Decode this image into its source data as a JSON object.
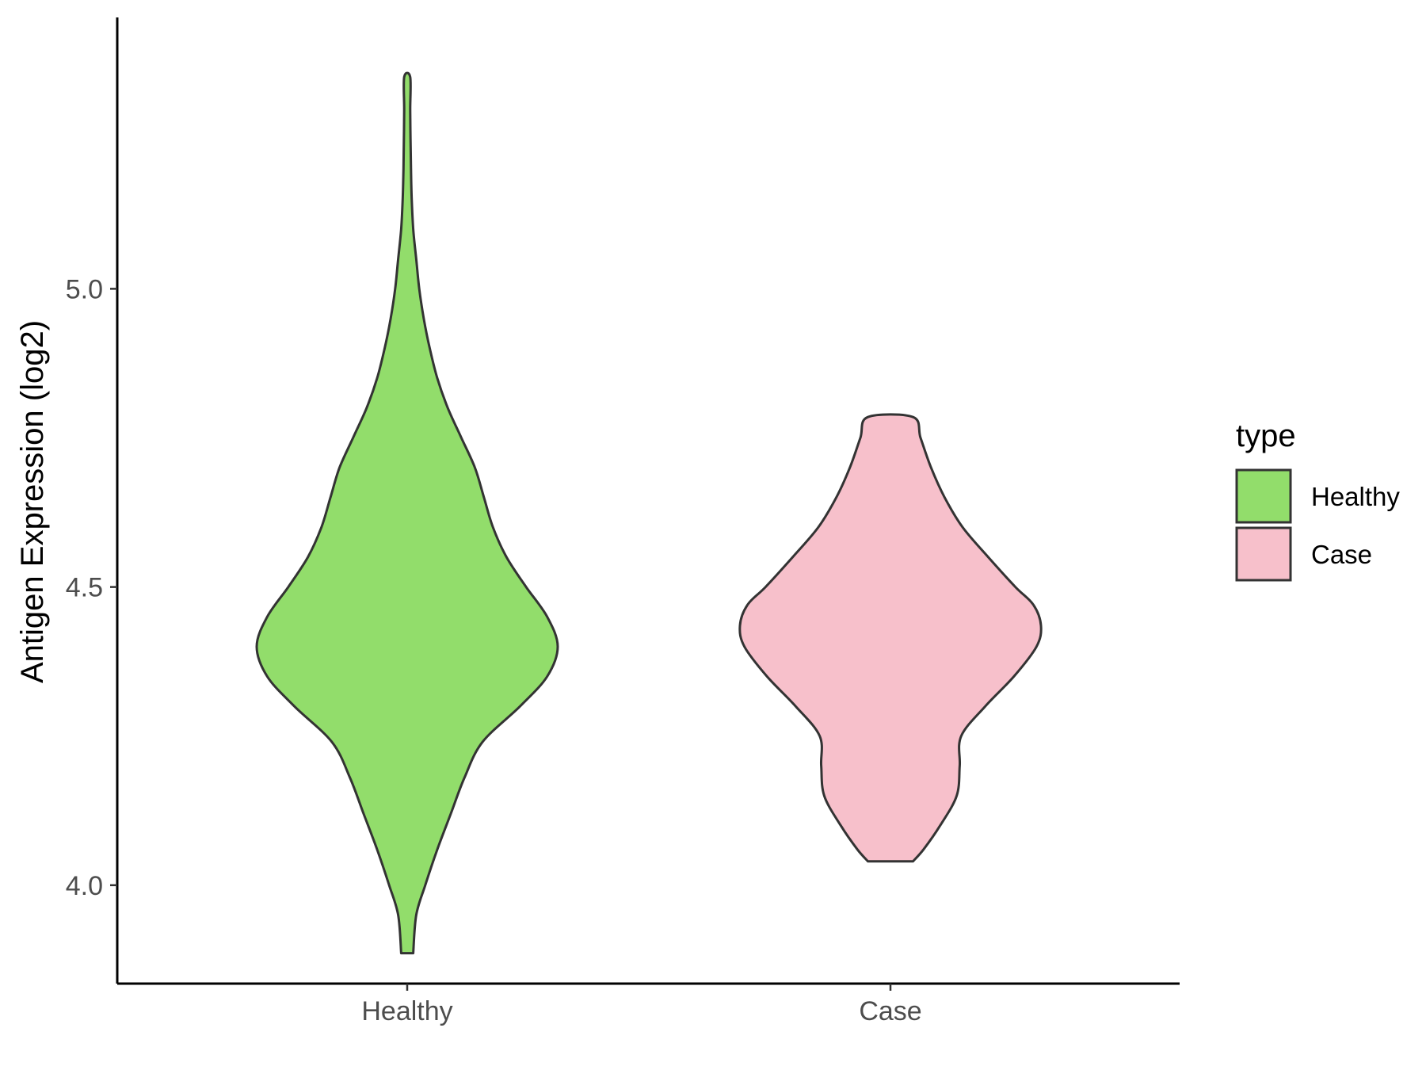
{
  "chart_data": {
    "type": "violin",
    "title": "",
    "xlabel": "",
    "ylabel": "Antigen Expression (log2)",
    "ylim": [
      3.835,
      5.455
    ],
    "yticks": [
      4.0,
      4.5,
      5.0
    ],
    "ytick_labels": [
      "4.0",
      "4.5",
      "5.0"
    ],
    "categories": [
      "Healthy",
      "Case"
    ],
    "legend": {
      "title": "type",
      "position": "right",
      "entries": [
        {
          "label": "Healthy",
          "color": "#92dd6b"
        },
        {
          "label": "Case",
          "color": "#f7c0cb"
        }
      ]
    },
    "grid": false,
    "series": [
      {
        "category": "Healthy",
        "color": "#92dd6b",
        "min": 3.886,
        "max": 5.355,
        "density_profile": [
          [
            3.886,
            0.04
          ],
          [
            3.95,
            0.06
          ],
          [
            4.0,
            0.12
          ],
          [
            4.06,
            0.2
          ],
          [
            4.12,
            0.29
          ],
          [
            4.18,
            0.38
          ],
          [
            4.24,
            0.5
          ],
          [
            4.3,
            0.75
          ],
          [
            4.35,
            0.93
          ],
          [
            4.4,
            1.0
          ],
          [
            4.45,
            0.93
          ],
          [
            4.5,
            0.79
          ],
          [
            4.55,
            0.66
          ],
          [
            4.6,
            0.57
          ],
          [
            4.65,
            0.51
          ],
          [
            4.7,
            0.45
          ],
          [
            4.75,
            0.36
          ],
          [
            4.8,
            0.27
          ],
          [
            4.85,
            0.2
          ],
          [
            4.9,
            0.15
          ],
          [
            4.95,
            0.11
          ],
          [
            5.0,
            0.08
          ],
          [
            5.05,
            0.06
          ],
          [
            5.1,
            0.04
          ],
          [
            5.15,
            0.03
          ],
          [
            5.2,
            0.025
          ],
          [
            5.25,
            0.022
          ],
          [
            5.3,
            0.02
          ],
          [
            5.355,
            0.02
          ]
        ]
      },
      {
        "category": "Case",
        "color": "#f7c0cb",
        "min": 4.04,
        "max": 4.785,
        "density_profile": [
          [
            4.04,
            0.15
          ],
          [
            4.06,
            0.22
          ],
          [
            4.1,
            0.33
          ],
          [
            4.15,
            0.44
          ],
          [
            4.2,
            0.46
          ],
          [
            4.25,
            0.47
          ],
          [
            4.3,
            0.63
          ],
          [
            4.35,
            0.82
          ],
          [
            4.4,
            0.97
          ],
          [
            4.435,
            1.0
          ],
          [
            4.47,
            0.95
          ],
          [
            4.5,
            0.83
          ],
          [
            4.55,
            0.65
          ],
          [
            4.6,
            0.48
          ],
          [
            4.65,
            0.36
          ],
          [
            4.7,
            0.27
          ],
          [
            4.75,
            0.2
          ],
          [
            4.785,
            0.15
          ]
        ]
      }
    ]
  }
}
